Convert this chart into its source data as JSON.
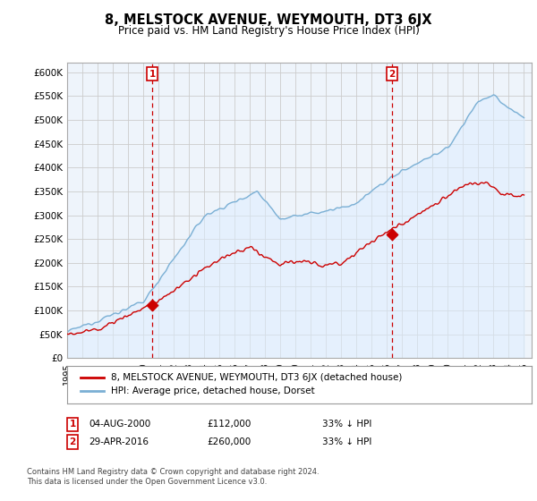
{
  "title": "8, MELSTOCK AVENUE, WEYMOUTH, DT3 6JX",
  "subtitle": "Price paid vs. HM Land Registry's House Price Index (HPI)",
  "ylabel_ticks": [
    "£0",
    "£50K",
    "£100K",
    "£150K",
    "£200K",
    "£250K",
    "£300K",
    "£350K",
    "£400K",
    "£450K",
    "£500K",
    "£550K",
    "£600K"
  ],
  "ytick_values": [
    0,
    50000,
    100000,
    150000,
    200000,
    250000,
    300000,
    350000,
    400000,
    450000,
    500000,
    550000,
    600000
  ],
  "ylim": [
    0,
    620000
  ],
  "xlim_start": 1995.0,
  "xlim_end": 2025.5,
  "marker1_x": 2000.58,
  "marker1_y": 112000,
  "marker2_x": 2016.33,
  "marker2_y": 260000,
  "sale_color": "#cc0000",
  "hpi_color": "#7aafd4",
  "hpi_fill_color": "#ddeeff",
  "grid_color": "#cccccc",
  "bg_color": "#ffffff",
  "legend_sale_label": "8, MELSTOCK AVENUE, WEYMOUTH, DT3 6JX (detached house)",
  "legend_hpi_label": "HPI: Average price, detached house, Dorset",
  "annotation1_date": "04-AUG-2000",
  "annotation1_price": "£112,000",
  "annotation1_note": "33% ↓ HPI",
  "annotation2_date": "29-APR-2016",
  "annotation2_price": "£260,000",
  "annotation2_note": "33% ↓ HPI",
  "footer": "Contains HM Land Registry data © Crown copyright and database right 2024.\nThis data is licensed under the Open Government Licence v3.0."
}
